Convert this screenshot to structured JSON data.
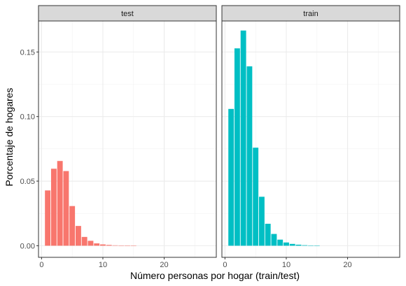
{
  "chart_data": {
    "type": "bar",
    "xlabel": "Número personas por hogar (train/test)",
    "ylabel": "Porcentaje de hogares",
    "xlim": [
      -0.5,
      28.5
    ],
    "ylim": [
      -0.009,
      0.174
    ],
    "x_ticks": [
      "0",
      "10",
      "20"
    ],
    "y_ticks": [
      "0.00",
      "0.05",
      "0.10",
      "0.15"
    ],
    "grid": true,
    "x": [
      1,
      2,
      3,
      4,
      5,
      6,
      7,
      8,
      9,
      10,
      11,
      12,
      13,
      14,
      15
    ],
    "panels": [
      {
        "name": "test",
        "color": "#F8766D",
        "values": [
          0.0428,
          0.0596,
          0.0656,
          0.0578,
          0.0307,
          0.0153,
          0.0068,
          0.0038,
          0.0018,
          0.001,
          0.0006,
          0.0003,
          0.0002,
          0.0001,
          0.0001
        ]
      },
      {
        "name": "train",
        "color": "#00BFC4",
        "values": [
          0.1059,
          0.1528,
          0.1666,
          0.1389,
          0.0759,
          0.0379,
          0.017,
          0.0091,
          0.0047,
          0.0025,
          0.0014,
          0.0008,
          0.0004,
          0.0002,
          0.0001
        ]
      }
    ]
  }
}
